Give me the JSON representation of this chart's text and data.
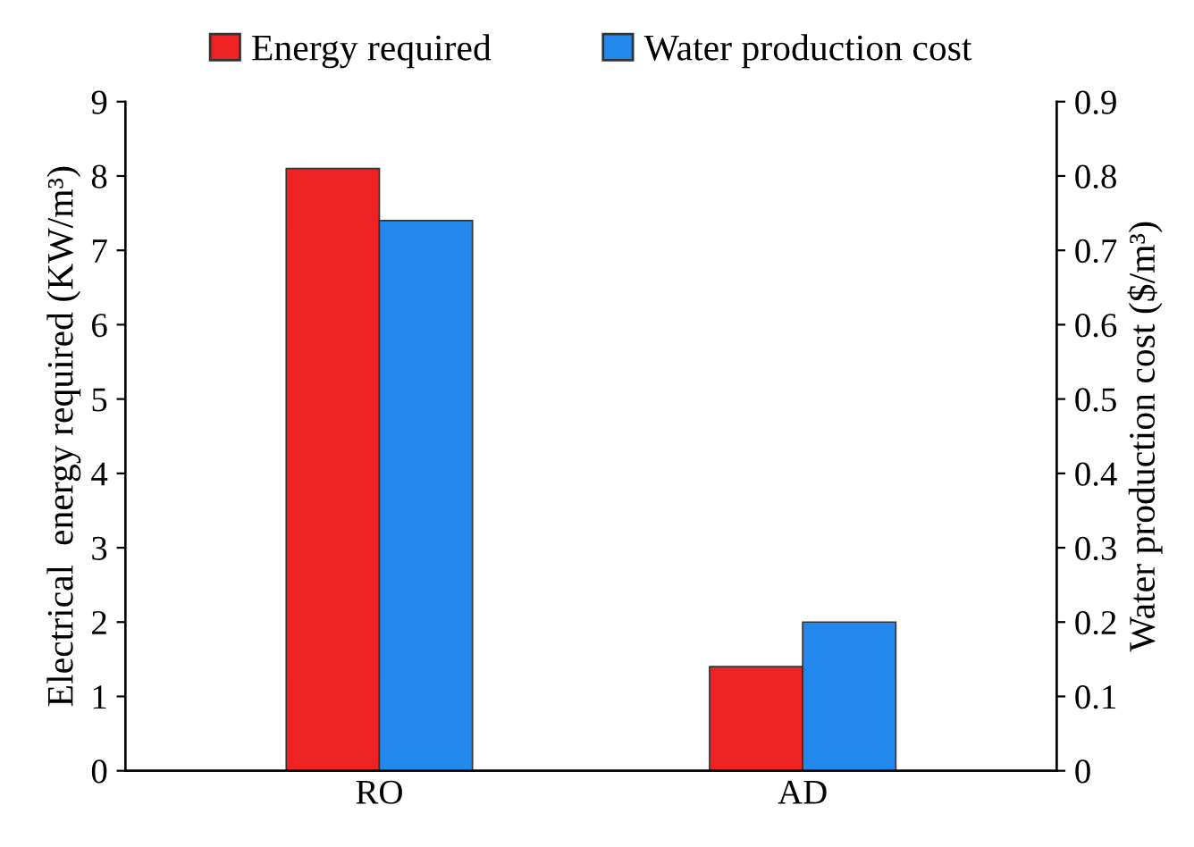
{
  "chart_data": {
    "type": "bar",
    "categories": [
      "RO",
      "AD"
    ],
    "series": [
      {
        "name": "Energy required",
        "color": "#ee2222",
        "values": [
          8.1,
          1.4
        ]
      },
      {
        "name": "Water production cost",
        "color": "#2288ee",
        "values": [
          0.74,
          0.2
        ],
        "axis": "y2"
      }
    ],
    "ylabel": "Electrical  energy required (KW/m³)",
    "y2label": "Water production cost ($/m³)",
    "ylim": [
      0,
      9
    ],
    "yticks": [
      0,
      1,
      2,
      3,
      4,
      5,
      6,
      7,
      8,
      9
    ],
    "y2lim": [
      0,
      0.9
    ],
    "y2ticks": [
      0,
      0.1,
      0.2,
      0.3,
      0.4,
      0.5,
      0.6,
      0.7,
      0.8,
      0.9
    ],
    "legend": "top",
    "grid": false
  }
}
